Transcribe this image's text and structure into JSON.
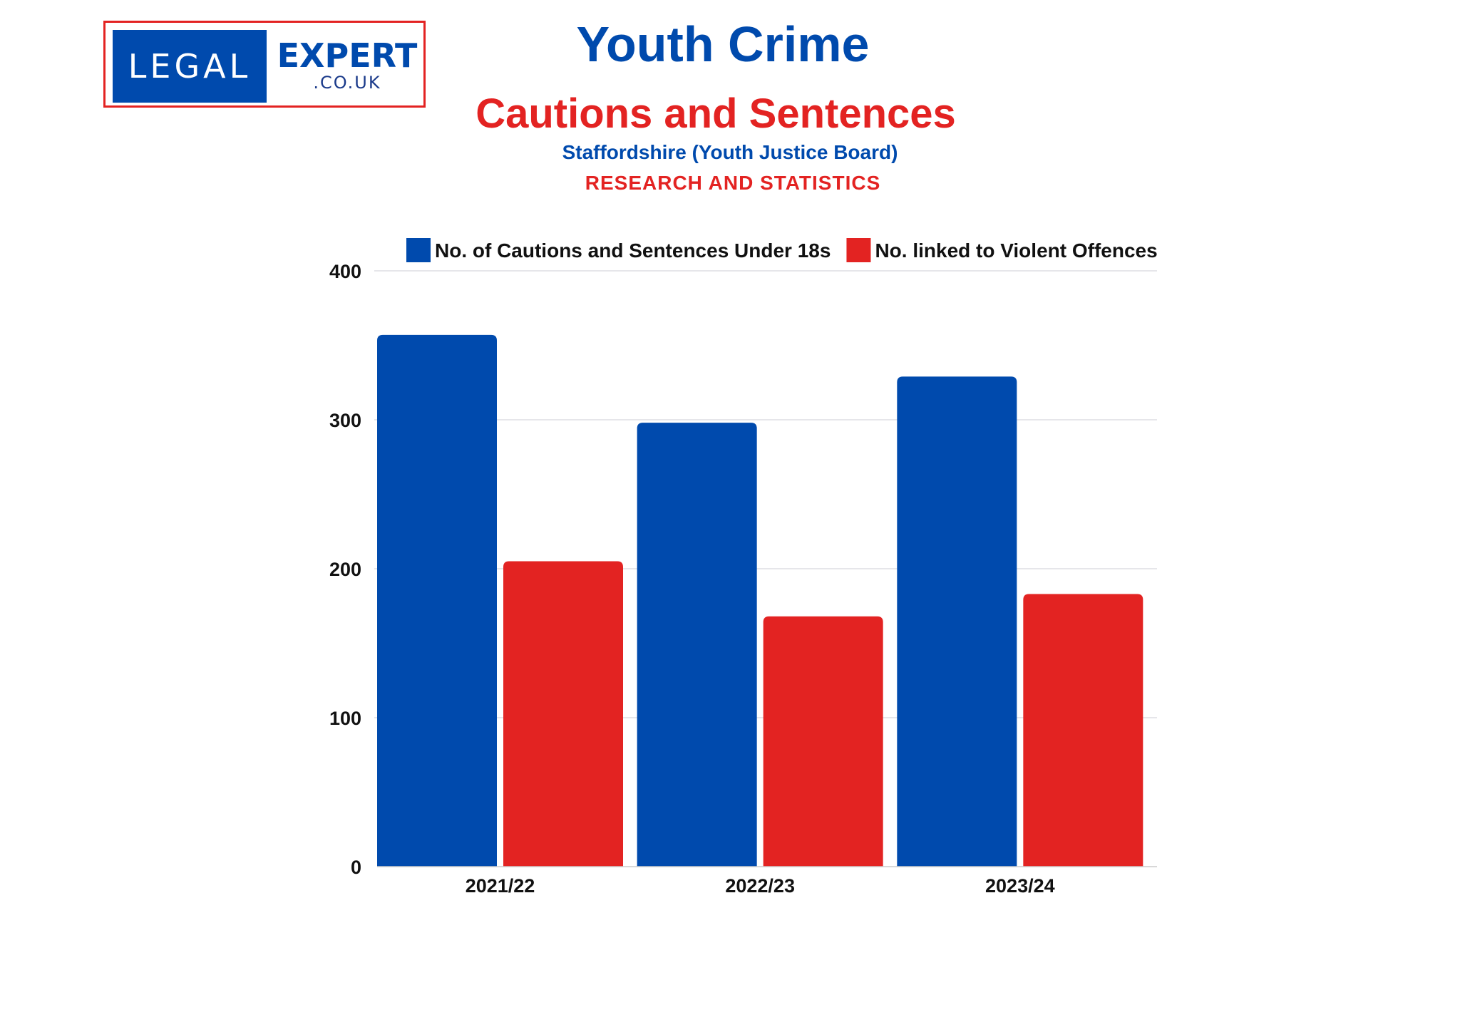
{
  "logo": {
    "left": "LEGAL",
    "right": "EXPERT",
    "domain": ".CO.UK"
  },
  "header": {
    "title": "Youth Crime",
    "subtitle": "Cautions and Sentences",
    "board": "Staffordshire (Youth Justice Board)",
    "research": "RESEARCH AND STATISTICS"
  },
  "colors": {
    "blue": "#004aad",
    "red": "#e32322"
  },
  "chart_data": {
    "type": "bar",
    "categories": [
      "2021/22",
      "2022/23",
      "2023/24"
    ],
    "series": [
      {
        "name": "No. of Cautions and Sentences Under 18s",
        "color": "#004aad",
        "values": [
          357,
          298,
          329
        ]
      },
      {
        "name": "No. linked to Violent Offences",
        "color": "#e32322",
        "values": [
          205,
          168,
          183
        ]
      }
    ],
    "ylim": [
      0,
      400
    ],
    "yticks": [
      0,
      100,
      200,
      300,
      400
    ],
    "grid": true,
    "legend": "top-center",
    "xlabel": "",
    "ylabel": ""
  }
}
